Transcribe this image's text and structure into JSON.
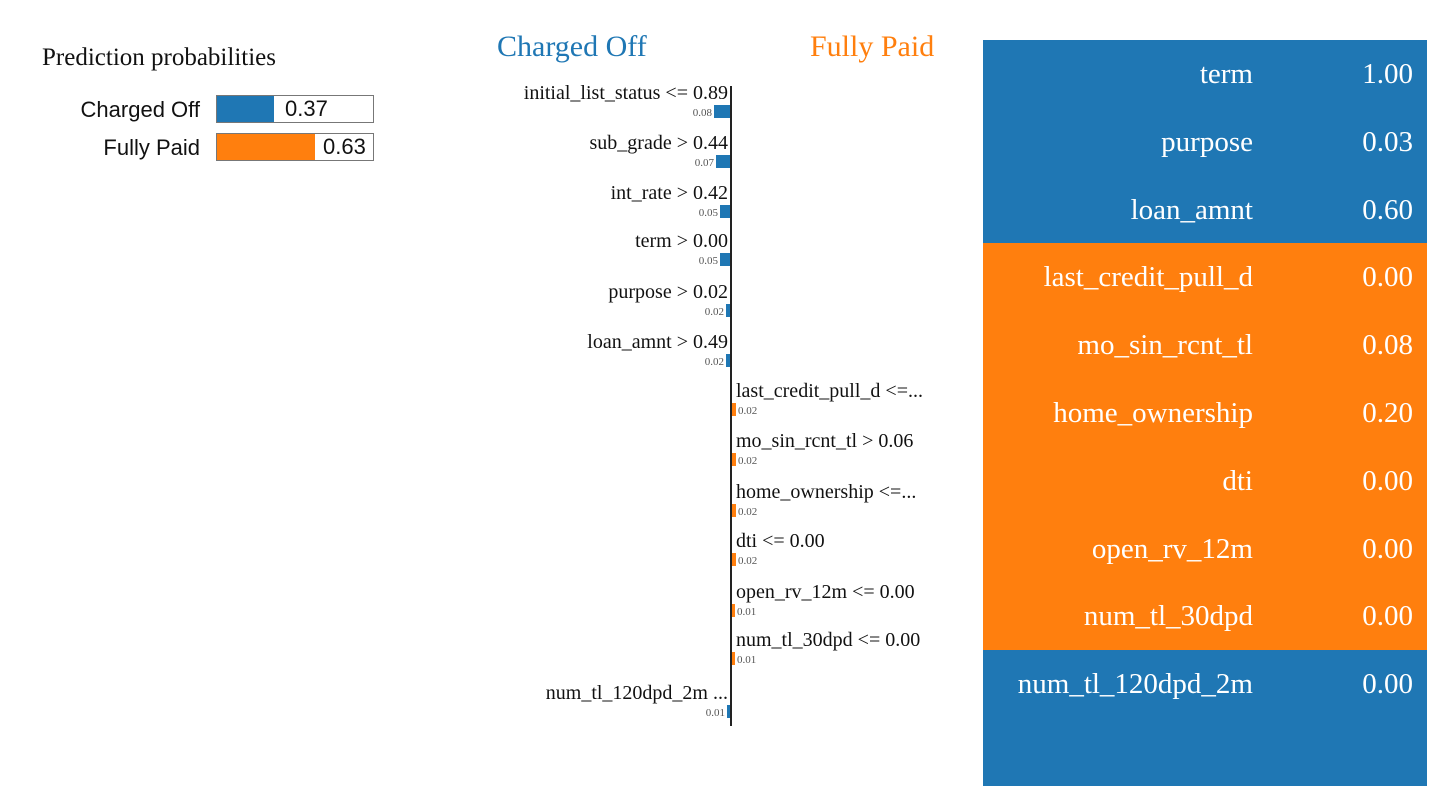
{
  "chart_data": {
    "type": "bar",
    "prediction_probabilities": {
      "title": "Prediction probabilities",
      "classes": [
        {
          "name": "Charged Off",
          "value": 0.37,
          "label": "0.37",
          "color": "#1f77b4"
        },
        {
          "name": "Fully Paid",
          "value": 0.63,
          "label": "0.63",
          "color": "#ff7f0e"
        }
      ]
    },
    "class_headers": {
      "negative": "Charged Off",
      "positive": "Fully Paid"
    },
    "features": [
      {
        "label": "initial_list_status <= 0.89",
        "value": 0.08,
        "value_label": "0.08",
        "side": "Charged Off"
      },
      {
        "label": "sub_grade > 0.44",
        "value": 0.07,
        "value_label": "0.07",
        "side": "Charged Off"
      },
      {
        "label": "int_rate > 0.42",
        "value": 0.05,
        "value_label": "0.05",
        "side": "Charged Off"
      },
      {
        "label": "term > 0.00",
        "value": 0.05,
        "value_label": "0.05",
        "side": "Charged Off"
      },
      {
        "label": "purpose > 0.02",
        "value": 0.02,
        "value_label": "0.02",
        "side": "Charged Off"
      },
      {
        "label": "loan_amnt > 0.49",
        "value": 0.02,
        "value_label": "0.02",
        "side": "Charged Off"
      },
      {
        "label": "last_credit_pull_d <=...",
        "value": 0.02,
        "value_label": "0.02",
        "side": "Fully Paid"
      },
      {
        "label": "mo_sin_rcnt_tl > 0.06",
        "value": 0.02,
        "value_label": "0.02",
        "side": "Fully Paid"
      },
      {
        "label": "home_ownership <=...",
        "value": 0.02,
        "value_label": "0.02",
        "side": "Fully Paid"
      },
      {
        "label": "dti <= 0.00",
        "value": 0.02,
        "value_label": "0.02",
        "side": "Fully Paid"
      },
      {
        "label": "open_rv_12m <= 0.00",
        "value": 0.01,
        "value_label": "0.01",
        "side": "Fully Paid"
      },
      {
        "label": "num_tl_30dpd <= 0.00",
        "value": 0.01,
        "value_label": "0.01",
        "side": "Fully Paid"
      },
      {
        "label": "num_tl_120dpd_2m ...",
        "value": 0.01,
        "value_label": "0.01",
        "side": "Charged Off"
      }
    ],
    "feature_values": [
      {
        "feature": "term",
        "value": "1.00",
        "side": "Charged Off"
      },
      {
        "feature": "purpose",
        "value": "0.03",
        "side": "Charged Off"
      },
      {
        "feature": "loan_amnt",
        "value": "0.60",
        "side": "Charged Off"
      },
      {
        "feature": "last_credit_pull_d",
        "value": "0.00",
        "side": "Fully Paid"
      },
      {
        "feature": "mo_sin_rcnt_tl",
        "value": "0.08",
        "side": "Fully Paid"
      },
      {
        "feature": "home_ownership",
        "value": "0.20",
        "side": "Fully Paid"
      },
      {
        "feature": "dti",
        "value": "0.00",
        "side": "Fully Paid"
      },
      {
        "feature": "open_rv_12m",
        "value": "0.00",
        "side": "Fully Paid"
      },
      {
        "feature": "num_tl_30dpd",
        "value": "0.00",
        "side": "Fully Paid"
      },
      {
        "feature": "num_tl_120dpd_2m",
        "value": "0.00",
        "side": "Charged Off"
      },
      {
        "feature": "",
        "value": "",
        "side": "Charged Off"
      }
    ],
    "colors": {
      "Charged Off": "#1f77b4",
      "Fully Paid": "#ff7f0e"
    }
  }
}
